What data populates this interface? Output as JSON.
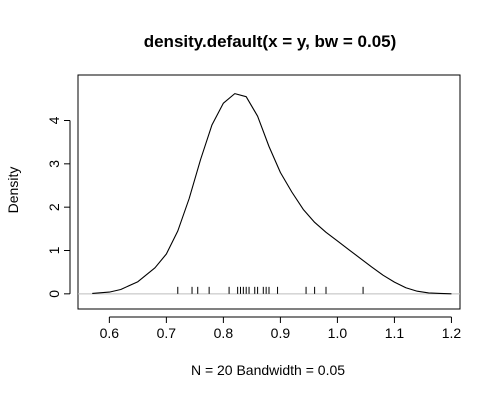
{
  "chart_data": {
    "type": "line",
    "title": "density.default(x = y, bw = 0.05)",
    "xlabel": "N = 20   Bandwidth = 0.05",
    "ylabel": "Density",
    "xlim": [
      0.545,
      1.215
    ],
    "ylim": [
      -0.35,
      5.05
    ],
    "x_ticks": [
      "0.6",
      "0.7",
      "0.8",
      "0.9",
      "1.0",
      "1.1",
      "1.2"
    ],
    "x_tick_values": [
      0.6,
      0.7,
      0.8,
      0.9,
      1.0,
      1.1,
      1.2
    ],
    "y_ticks": [
      "0",
      "1",
      "2",
      "3",
      "4"
    ],
    "y_tick_values": [
      0,
      1,
      2,
      3,
      4
    ],
    "baseline": 0,
    "grid": false,
    "series": [
      {
        "name": "",
        "x": [
          0.57,
          0.6,
          0.62,
          0.65,
          0.68,
          0.7,
          0.72,
          0.74,
          0.76,
          0.78,
          0.8,
          0.82,
          0.84,
          0.86,
          0.88,
          0.9,
          0.92,
          0.94,
          0.96,
          0.98,
          1.0,
          1.02,
          1.04,
          1.06,
          1.08,
          1.1,
          1.12,
          1.14,
          1.16,
          1.18,
          1.2
        ],
        "y": [
          0.01,
          0.04,
          0.1,
          0.28,
          0.6,
          0.92,
          1.45,
          2.2,
          3.1,
          3.9,
          4.4,
          4.62,
          4.55,
          4.1,
          3.4,
          2.8,
          2.35,
          1.95,
          1.65,
          1.42,
          1.22,
          1.02,
          0.82,
          0.62,
          0.43,
          0.27,
          0.14,
          0.06,
          0.02,
          0.01,
          0.0
        ]
      }
    ],
    "rug": [
      0.72,
      0.745,
      0.755,
      0.775,
      0.81,
      0.825,
      0.83,
      0.835,
      0.84,
      0.845,
      0.855,
      0.86,
      0.87,
      0.875,
      0.88,
      0.895,
      0.945,
      0.96,
      0.98,
      1.045
    ],
    "colors": {
      "line": "#000000",
      "baseline": "#bebebe",
      "rug": "#000000"
    }
  }
}
